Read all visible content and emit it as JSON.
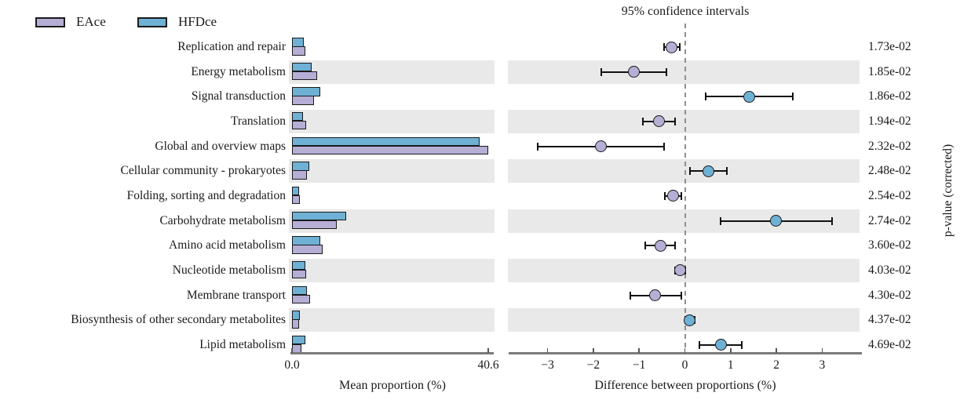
{
  "legend": {
    "items": [
      {
        "label": "EAce",
        "color": "#b6aed5"
      },
      {
        "label": "HFDce",
        "color": "#6fb0d5"
      }
    ]
  },
  "right_title": "95% confidence intervals",
  "pval_axis_label": "p-value (corrected)",
  "colors": {
    "eace": "#b6aed5",
    "hfdce": "#6fb0d5",
    "stripe": "#e9e9e9",
    "axis": "#7a7a7a",
    "error_bar": "#111111"
  },
  "chart_data": {
    "type": "extended-error-bar (STAMP)",
    "categories": [
      "Replication and repair",
      "Energy metabolism",
      "Signal transduction",
      "Translation",
      "Global and overview maps",
      "Cellular community - prokaryotes",
      "Folding, sorting and degradation",
      "Carbohydrate metabolism",
      "Amino acid metabolism",
      "Nucleotide metabolism",
      "Membrane transport",
      "Biosynthesis of other secondary metabolites",
      "Lipid metabolism"
    ],
    "bar_chart": {
      "title": "",
      "xlabel": "Mean proportion (%)",
      "xlim": [
        0,
        40.6
      ],
      "tick_labels": [
        "0.0",
        "40.6"
      ],
      "tick_values": [
        0,
        40.6
      ],
      "series": [
        {
          "name": "HFDce",
          "color": "#6fb0d5",
          "values": [
            2.4,
            4.1,
            5.9,
            2.3,
            38.8,
            3.6,
            1.5,
            11.2,
            5.8,
            2.8,
            3.1,
            1.6,
            2.8
          ]
        },
        {
          "name": "EAce",
          "color": "#b6aed5",
          "values": [
            2.7,
            5.2,
            4.5,
            2.9,
            40.6,
            3.1,
            1.7,
            9.2,
            6.4,
            3.0,
            3.7,
            1.5,
            2.0
          ]
        }
      ]
    },
    "difference_chart": {
      "title": "95% confidence intervals",
      "xlabel": "Difference between proportions (%)",
      "xlim": [
        -3.85,
        3.85
      ],
      "tick_labels": [
        "−3",
        "−2",
        "−1",
        "0",
        "1",
        "2",
        "3"
      ],
      "tick_values": [
        -3,
        -2,
        -1,
        0,
        1,
        2,
        3
      ],
      "zero_line": true,
      "points": [
        {
          "mean": -0.3,
          "ci": [
            -0.46,
            -0.12
          ],
          "higher_in": "EAce"
        },
        {
          "mean": -1.11,
          "ci": [
            -1.82,
            -0.4
          ],
          "higher_in": "EAce"
        },
        {
          "mean": 1.41,
          "ci": [
            0.46,
            2.35
          ],
          "higher_in": "HFDce"
        },
        {
          "mean": -0.57,
          "ci": [
            -0.91,
            -0.22
          ],
          "higher_in": "EAce"
        },
        {
          "mean": -1.84,
          "ci": [
            -3.22,
            -0.46
          ],
          "higher_in": "EAce"
        },
        {
          "mean": 0.52,
          "ci": [
            0.11,
            0.92
          ],
          "higher_in": "HFDce"
        },
        {
          "mean": -0.25,
          "ci": [
            -0.44,
            -0.07
          ],
          "higher_in": "EAce"
        },
        {
          "mean": 1.99,
          "ci": [
            0.78,
            3.22
          ],
          "higher_in": "HFDce"
        },
        {
          "mean": -0.54,
          "ci": [
            -0.86,
            -0.21
          ],
          "higher_in": "EAce"
        },
        {
          "mean": -0.1,
          "ci": [
            -0.21,
            0.01
          ],
          "higher_in": "EAce"
        },
        {
          "mean": -0.65,
          "ci": [
            -1.2,
            -0.08
          ],
          "higher_in": "EAce"
        },
        {
          "mean": 0.11,
          "ci": [
            0.01,
            0.22
          ],
          "higher_in": "HFDce"
        },
        {
          "mean": 0.79,
          "ci": [
            0.32,
            1.24
          ],
          "higher_in": "HFDce"
        }
      ]
    },
    "p_values": [
      "1.73e-02",
      "1.85e-02",
      "1.86e-02",
      "1.94e-02",
      "2.32e-02",
      "2.48e-02",
      "2.54e-02",
      "2.74e-02",
      "3.60e-02",
      "4.03e-02",
      "4.30e-02",
      "4.37e-02",
      "4.69e-02"
    ],
    "p_value_axis_label": "p-value (corrected)"
  }
}
